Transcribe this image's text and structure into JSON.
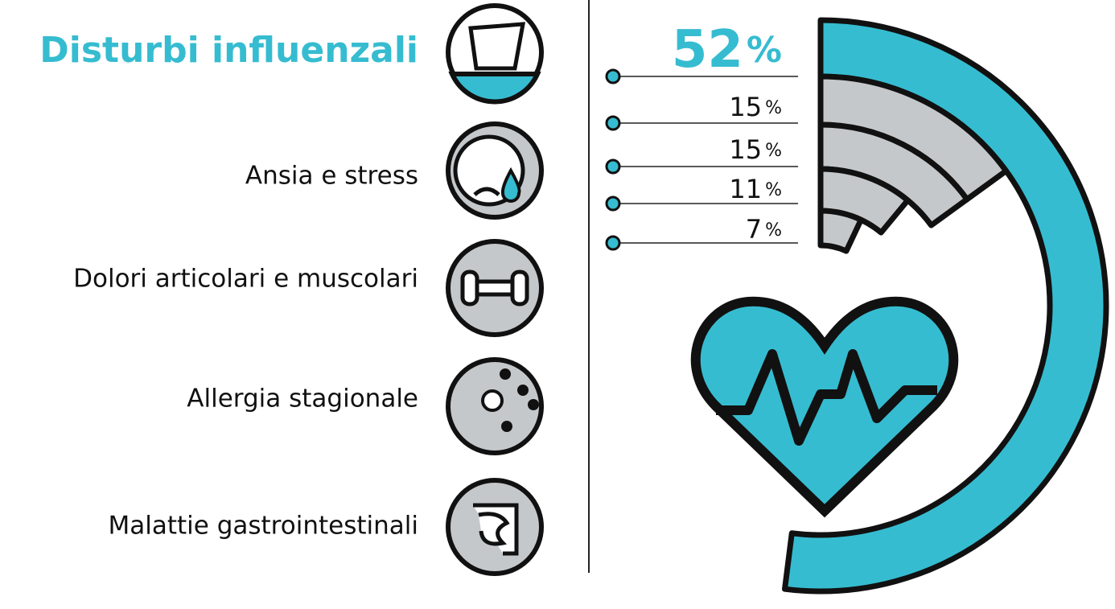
{
  "chart_data": {
    "type": "radial-bar",
    "categories": [
      "Disturbi influenzali",
      "Ansia e stress",
      "Dolori articolari e muscolari",
      "Allergia stagionale",
      "Malattie gastrointestinali"
    ],
    "values": [
      52,
      15,
      15,
      11,
      7
    ],
    "value_labels": [
      "52%",
      "15%",
      "15%",
      "11%",
      "7%"
    ],
    "colors": [
      "#36bcd0",
      "#c5c8cb",
      "#c5c8cb",
      "#c5c8cb",
      "#c5c8cb"
    ],
    "ylim": [
      0,
      100
    ]
  }
}
